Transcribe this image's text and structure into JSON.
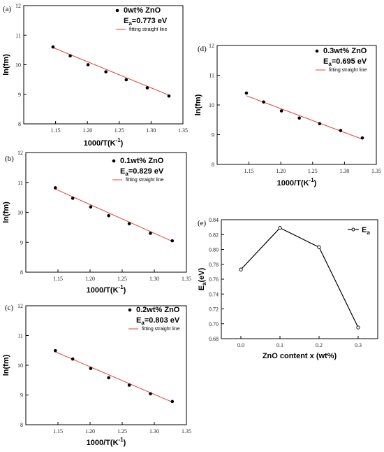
{
  "chart_data": [
    {
      "id": "a",
      "type": "scatter",
      "panel_label": "(a)",
      "xlabel": "1000/T(K",
      "xlabel_sup": "-1",
      "xlabel_end": ")",
      "ylabel": "ln(fm)",
      "xlim": [
        1.1,
        1.35
      ],
      "ylim": [
        8,
        12
      ],
      "xticks": [
        "1.15",
        "1.20",
        "1.25",
        "1.30",
        "1.35"
      ],
      "yticks": [
        "8",
        "9",
        "10",
        "11",
        "12"
      ],
      "legend": {
        "series_name": "0wt% ZnO",
        "ea_prefix": "E",
        "ea_sub": "a",
        "ea_value": "=0.773 eV",
        "fit_name": "fitting straight line"
      },
      "series": [
        {
          "name": "0wt% ZnO",
          "x": [
            1.146,
            1.173,
            1.201,
            1.229,
            1.261,
            1.294,
            1.328
          ],
          "y": [
            10.6,
            10.3,
            10.0,
            9.76,
            9.49,
            9.22,
            8.94
          ]
        }
      ],
      "fit": {
        "x": [
          1.146,
          1.328
        ],
        "y": [
          10.58,
          8.97
        ]
      }
    },
    {
      "id": "b",
      "type": "scatter",
      "panel_label": "(b)",
      "xlabel": "1000/T(K",
      "xlabel_sup": "-1",
      "xlabel_end": ")",
      "ylabel": "ln(fm)",
      "xlim": [
        1.1,
        1.35
      ],
      "ylim": [
        8,
        12
      ],
      "xticks": [
        "1.15",
        "1.20",
        "1.25",
        "1.30",
        "1.35"
      ],
      "yticks": [
        "8",
        "9",
        "10",
        "11",
        "12"
      ],
      "legend": {
        "series_name": "0.1wt% ZnO",
        "ea_prefix": "E",
        "ea_sub": "a",
        "ea_value": "=0.829 eV",
        "fit_name": "fitting straight line"
      },
      "series": [
        {
          "name": "0.1wt% ZnO",
          "x": [
            1.146,
            1.173,
            1.201,
            1.229,
            1.261,
            1.294,
            1.328
          ],
          "y": [
            10.82,
            10.47,
            10.18,
            9.89,
            9.62,
            9.3,
            9.05
          ]
        }
      ],
      "fit": {
        "x": [
          1.146,
          1.328
        ],
        "y": [
          10.78,
          9.03
        ]
      }
    },
    {
      "id": "c",
      "type": "scatter",
      "panel_label": "(c)",
      "xlabel": "1000/T(K",
      "xlabel_sup": "-1",
      "xlabel_end": ")",
      "ylabel": "ln(fm)",
      "xlim": [
        1.1,
        1.35
      ],
      "ylim": [
        8,
        12
      ],
      "xticks": [
        "1.15",
        "1.20",
        "1.25",
        "1.30",
        "1.35"
      ],
      "yticks": [
        "8",
        "9",
        "10",
        "11",
        "12"
      ],
      "legend": {
        "series_name": "0.2wt% ZnO",
        "ea_prefix": "E",
        "ea_sub": "a",
        "ea_value": "=0.803 eV",
        "fit_name": "fitting straight line"
      },
      "series": [
        {
          "name": "0.2wt% ZnO",
          "x": [
            1.146,
            1.173,
            1.201,
            1.229,
            1.261,
            1.294,
            1.328
          ],
          "y": [
            10.49,
            10.21,
            9.89,
            9.58,
            9.33,
            9.04,
            8.78
          ]
        }
      ],
      "fit": {
        "x": [
          1.146,
          1.328
        ],
        "y": [
          10.45,
          8.76
        ]
      }
    },
    {
      "id": "d",
      "type": "scatter",
      "panel_label": "(d)",
      "xlabel": "1000/T(K",
      "xlabel_sup": "-1",
      "xlabel_end": ")",
      "ylabel": "ln(fm)",
      "xlim": [
        1.1,
        1.35
      ],
      "ylim": [
        8,
        12
      ],
      "xticks": [
        "1.15",
        "1.20",
        "1.25",
        "1.30",
        "1.35"
      ],
      "yticks": [
        "8",
        "9",
        "10",
        "11",
        "12"
      ],
      "legend": {
        "series_name": "0.3wt% ZnO",
        "ea_prefix": "E",
        "ea_sub": "a",
        "ea_value": "=0.695 eV",
        "fit_name": "fitting straight line"
      },
      "series": [
        {
          "name": "0.3wt% ZnO",
          "x": [
            1.146,
            1.173,
            1.201,
            1.229,
            1.261,
            1.294,
            1.328
          ],
          "y": [
            10.4,
            10.1,
            9.8,
            9.56,
            9.37,
            9.14,
            8.89
          ]
        }
      ],
      "fit": {
        "x": [
          1.146,
          1.328
        ],
        "y": [
          10.31,
          8.85
        ]
      }
    },
    {
      "id": "e",
      "type": "line",
      "panel_label": "(e)",
      "xlabel": "ZnO content x (wt%)",
      "ylabel": "E",
      "ylabel_sub": "a",
      "ylabel_end": "(eV)",
      "xlim": [
        -0.05,
        0.35
      ],
      "ylim": [
        0.68,
        0.84
      ],
      "xticks": [
        "0.0",
        "0.1",
        "0.2",
        "0.3"
      ],
      "yticks": [
        "0.68",
        "0.70",
        "0.72",
        "0.74",
        "0.76",
        "0.78",
        "0.80",
        "0.82",
        "0.84"
      ],
      "legend": {
        "prefix": "E",
        "sub": "a"
      },
      "series": [
        {
          "name": "Ea",
          "x": [
            0.0,
            0.1,
            0.2,
            0.3
          ],
          "y": [
            0.773,
            0.829,
            0.803,
            0.695
          ]
        }
      ]
    }
  ]
}
